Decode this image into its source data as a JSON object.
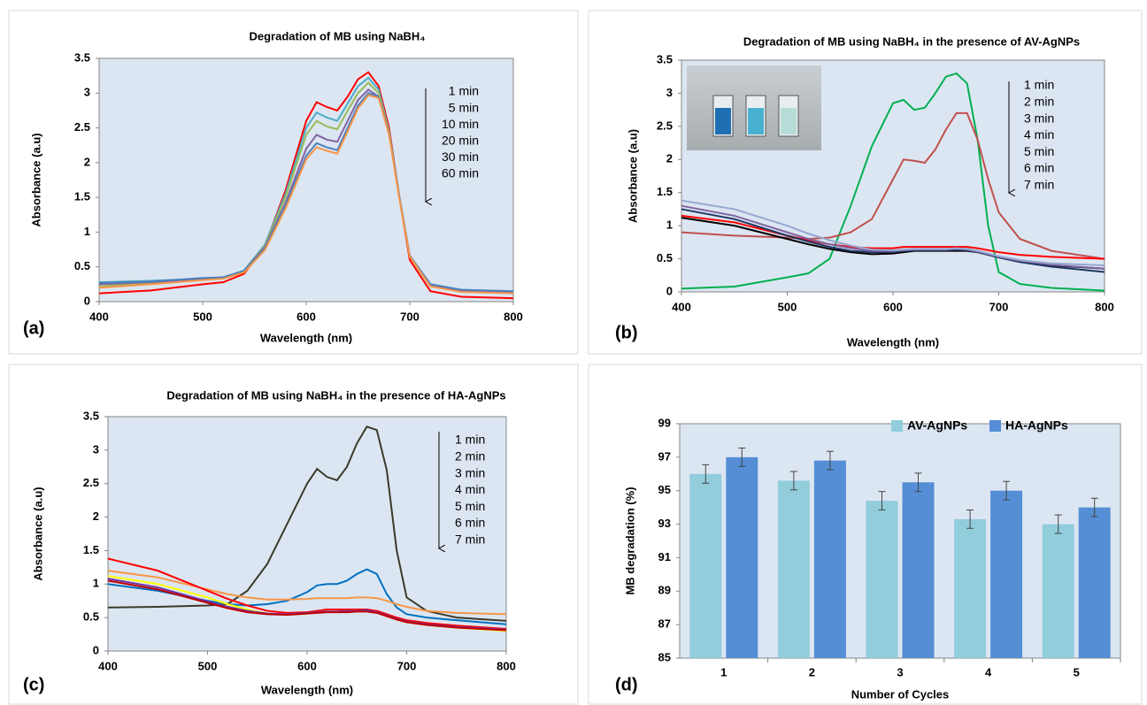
{
  "chart_data": [
    {
      "type": "line",
      "panel_label": "(a)",
      "title": "Degradation of MB using NaBH₄",
      "x_label": "Wavelength (nm)",
      "y_label": "Absorbance (a.u)",
      "background": "#dce6f2",
      "xlim": [
        400,
        800
      ],
      "xticks": [
        400,
        500,
        600,
        700,
        800
      ],
      "ylim": [
        0,
        3.5
      ],
      "yticks": [
        0,
        0.5,
        1,
        1.5,
        2,
        2.5,
        3,
        3.5
      ],
      "x": [
        400,
        450,
        500,
        520,
        540,
        560,
        580,
        600,
        610,
        620,
        630,
        640,
        650,
        660,
        670,
        680,
        690,
        700,
        720,
        750,
        800
      ],
      "series": [
        {
          "name": "1 min",
          "color": "#ff0000",
          "values": [
            0.12,
            0.16,
            0.25,
            0.28,
            0.4,
            0.8,
            1.6,
            2.6,
            2.87,
            2.8,
            2.75,
            2.95,
            3.2,
            3.3,
            3.1,
            2.5,
            1.5,
            0.6,
            0.15,
            0.07,
            0.05
          ]
        },
        {
          "name": "5 min",
          "color": "#4bacc6",
          "values": [
            0.28,
            0.3,
            0.33,
            0.35,
            0.45,
            0.82,
            1.55,
            2.5,
            2.72,
            2.65,
            2.6,
            2.85,
            3.1,
            3.22,
            3.05,
            2.45,
            1.5,
            0.65,
            0.25,
            0.17,
            0.15
          ]
        },
        {
          "name": "10 min",
          "color": "#9bbb59",
          "values": [
            0.22,
            0.27,
            0.32,
            0.34,
            0.44,
            0.8,
            1.5,
            2.4,
            2.6,
            2.52,
            2.48,
            2.75,
            3.0,
            3.15,
            3.0,
            2.45,
            1.5,
            0.65,
            0.22,
            0.15,
            0.13
          ]
        },
        {
          "name": "20 min",
          "color": "#8064a2",
          "values": [
            0.25,
            0.28,
            0.33,
            0.35,
            0.44,
            0.78,
            1.42,
            2.2,
            2.4,
            2.33,
            2.3,
            2.6,
            2.9,
            3.05,
            2.95,
            2.42,
            1.5,
            0.66,
            0.24,
            0.16,
            0.14
          ]
        },
        {
          "name": "30 min",
          "color": "#4f81bd",
          "values": [
            0.27,
            0.29,
            0.34,
            0.35,
            0.44,
            0.76,
            1.38,
            2.1,
            2.28,
            2.22,
            2.18,
            2.5,
            2.82,
            3.0,
            2.95,
            2.42,
            1.5,
            0.66,
            0.25,
            0.17,
            0.15
          ]
        },
        {
          "name": "60 min",
          "color": "#f79646",
          "values": [
            0.2,
            0.25,
            0.31,
            0.33,
            0.42,
            0.74,
            1.34,
            2.05,
            2.22,
            2.17,
            2.13,
            2.45,
            2.78,
            2.97,
            2.93,
            2.4,
            1.48,
            0.65,
            0.22,
            0.14,
            0.12
          ]
        }
      ]
    },
    {
      "type": "line",
      "panel_label": "(b)",
      "title": "Degradation of MB using NaBH₄ in the presence of AV-AgNPs",
      "x_label": "Wavelength (nm)",
      "y_label": "Absorbance (a.u)",
      "background": "#dce6f2",
      "xlim": [
        400,
        800
      ],
      "xticks": [
        400,
        500,
        600,
        700,
        800
      ],
      "ylim": [
        0,
        3.5
      ],
      "yticks": [
        0,
        0.5,
        1,
        1.5,
        2,
        2.5,
        3,
        3.5
      ],
      "x": [
        400,
        450,
        500,
        520,
        540,
        560,
        580,
        600,
        610,
        620,
        630,
        640,
        650,
        660,
        670,
        680,
        690,
        700,
        720,
        750,
        800
      ],
      "series": [
        {
          "name": "1 min",
          "color": "#00b050",
          "values": [
            0.05,
            0.08,
            0.22,
            0.28,
            0.5,
            1.3,
            2.2,
            2.85,
            2.9,
            2.75,
            2.78,
            3.0,
            3.25,
            3.3,
            3.15,
            2.3,
            1.0,
            0.3,
            0.12,
            0.06,
            0.02
          ]
        },
        {
          "name": "2 min",
          "color": "#c0504d",
          "values": [
            0.9,
            0.85,
            0.82,
            0.8,
            0.82,
            0.9,
            1.1,
            1.7,
            2.0,
            1.98,
            1.95,
            2.15,
            2.45,
            2.7,
            2.7,
            2.3,
            1.7,
            1.2,
            0.8,
            0.62,
            0.5
          ]
        },
        {
          "name": "3 min",
          "color": "#ff0000",
          "values": [
            1.15,
            1.05,
            0.85,
            0.78,
            0.72,
            0.68,
            0.66,
            0.66,
            0.68,
            0.68,
            0.68,
            0.68,
            0.68,
            0.68,
            0.68,
            0.66,
            0.63,
            0.6,
            0.56,
            0.53,
            0.5
          ]
        },
        {
          "name": "4 min",
          "color": "#000000",
          "values": [
            1.12,
            1.0,
            0.8,
            0.72,
            0.65,
            0.6,
            0.57,
            0.58,
            0.6,
            0.62,
            0.62,
            0.62,
            0.62,
            0.62,
            0.62,
            0.6,
            0.56,
            0.52,
            0.46,
            0.4,
            0.35
          ]
        },
        {
          "name": "5 min",
          "color": "#1f3864",
          "values": [
            1.25,
            1.1,
            0.85,
            0.76,
            0.68,
            0.62,
            0.6,
            0.6,
            0.62,
            0.63,
            0.63,
            0.63,
            0.63,
            0.64,
            0.63,
            0.6,
            0.56,
            0.52,
            0.45,
            0.38,
            0.3
          ]
        },
        {
          "name": "6 min",
          "color": "#8064a2",
          "values": [
            1.3,
            1.15,
            0.9,
            0.8,
            0.72,
            0.66,
            0.62,
            0.62,
            0.63,
            0.64,
            0.64,
            0.64,
            0.64,
            0.65,
            0.64,
            0.61,
            0.57,
            0.53,
            0.47,
            0.41,
            0.35
          ]
        },
        {
          "name": "7 min",
          "color": "#95a7d0",
          "values": [
            1.38,
            1.25,
            1.0,
            0.88,
            0.78,
            0.7,
            0.64,
            0.63,
            0.64,
            0.65,
            0.65,
            0.65,
            0.65,
            0.66,
            0.65,
            0.62,
            0.58,
            0.54,
            0.48,
            0.43,
            0.4
          ]
        }
      ]
    },
    {
      "type": "line",
      "panel_label": "(c)",
      "title": "Degradation of MB using NaBH₄ in the presence of HA-AgNPs",
      "x_label": "Wavelength (nm)",
      "y_label": "Absorbance (a.u)",
      "background": "#dce6f2",
      "xlim": [
        400,
        800
      ],
      "xticks": [
        400,
        500,
        600,
        700,
        800
      ],
      "ylim": [
        0,
        3.5
      ],
      "yticks": [
        0,
        0.5,
        1,
        1.5,
        2,
        2.5,
        3,
        3.5
      ],
      "x": [
        400,
        450,
        500,
        520,
        540,
        560,
        580,
        600,
        610,
        620,
        630,
        640,
        650,
        660,
        670,
        680,
        690,
        700,
        720,
        750,
        800
      ],
      "series": [
        {
          "name": "1 min",
          "color": "#3b3a29",
          "values": [
            0.65,
            0.66,
            0.68,
            0.7,
            0.9,
            1.3,
            1.9,
            2.5,
            2.72,
            2.6,
            2.55,
            2.75,
            3.1,
            3.35,
            3.3,
            2.7,
            1.5,
            0.8,
            0.6,
            0.5,
            0.45
          ]
        },
        {
          "name": "2 min",
          "color": "#0070c0",
          "values": [
            1.0,
            0.9,
            0.75,
            0.7,
            0.68,
            0.7,
            0.75,
            0.88,
            0.98,
            1.0,
            1.0,
            1.05,
            1.15,
            1.22,
            1.15,
            0.85,
            0.65,
            0.55,
            0.5,
            0.46,
            0.4
          ]
        },
        {
          "name": "3 min",
          "color": "#f79646",
          "values": [
            1.2,
            1.1,
            0.92,
            0.85,
            0.8,
            0.77,
            0.77,
            0.78,
            0.79,
            0.79,
            0.79,
            0.79,
            0.8,
            0.8,
            0.79,
            0.75,
            0.7,
            0.66,
            0.6,
            0.57,
            0.55
          ]
        },
        {
          "name": "4 min",
          "color": "#ff0000",
          "values": [
            1.38,
            1.2,
            0.9,
            0.78,
            0.68,
            0.6,
            0.57,
            0.58,
            0.6,
            0.62,
            0.62,
            0.62,
            0.62,
            0.62,
            0.6,
            0.55,
            0.5,
            0.46,
            0.42,
            0.38,
            0.33
          ]
        },
        {
          "name": "5 min",
          "color": "#ffff00",
          "values": [
            1.12,
            1.0,
            0.8,
            0.7,
            0.62,
            0.56,
            0.54,
            0.56,
            0.58,
            0.59,
            0.59,
            0.6,
            0.6,
            0.6,
            0.58,
            0.52,
            0.47,
            0.43,
            0.39,
            0.35,
            0.3
          ]
        },
        {
          "name": "6 min",
          "color": "#7030a0",
          "values": [
            1.08,
            0.95,
            0.74,
            0.66,
            0.6,
            0.56,
            0.55,
            0.57,
            0.58,
            0.59,
            0.59,
            0.6,
            0.6,
            0.61,
            0.58,
            0.53,
            0.48,
            0.44,
            0.4,
            0.36,
            0.32
          ]
        },
        {
          "name": "7 min",
          "color": "#c00000",
          "values": [
            1.05,
            0.92,
            0.72,
            0.64,
            0.58,
            0.55,
            0.54,
            0.56,
            0.57,
            0.58,
            0.58,
            0.58,
            0.59,
            0.59,
            0.57,
            0.52,
            0.47,
            0.43,
            0.39,
            0.35,
            0.31
          ]
        }
      ]
    },
    {
      "type": "bar",
      "panel_label": "(d)",
      "x_label": "Number of Cycles",
      "y_label": "MB degradation (%)",
      "background": "#dce6f2",
      "legend": "upper right",
      "categories": [
        "1",
        "2",
        "3",
        "4",
        "5"
      ],
      "ylim": [
        85,
        99
      ],
      "yticks": [
        85,
        87,
        89,
        91,
        93,
        95,
        97,
        99
      ],
      "series": [
        {
          "name": "AV-AgNPs",
          "color": "#92cddc",
          "values": [
            96,
            95.6,
            94.4,
            93.3,
            93
          ],
          "errors": [
            0.55,
            0.55,
            0.55,
            0.55,
            0.55
          ]
        },
        {
          "name": "HA-AgNPs",
          "color": "#558ed5",
          "values": [
            97,
            96.8,
            95.5,
            95,
            94
          ],
          "errors": [
            0.55,
            0.55,
            0.55,
            0.55,
            0.55
          ]
        }
      ]
    }
  ]
}
